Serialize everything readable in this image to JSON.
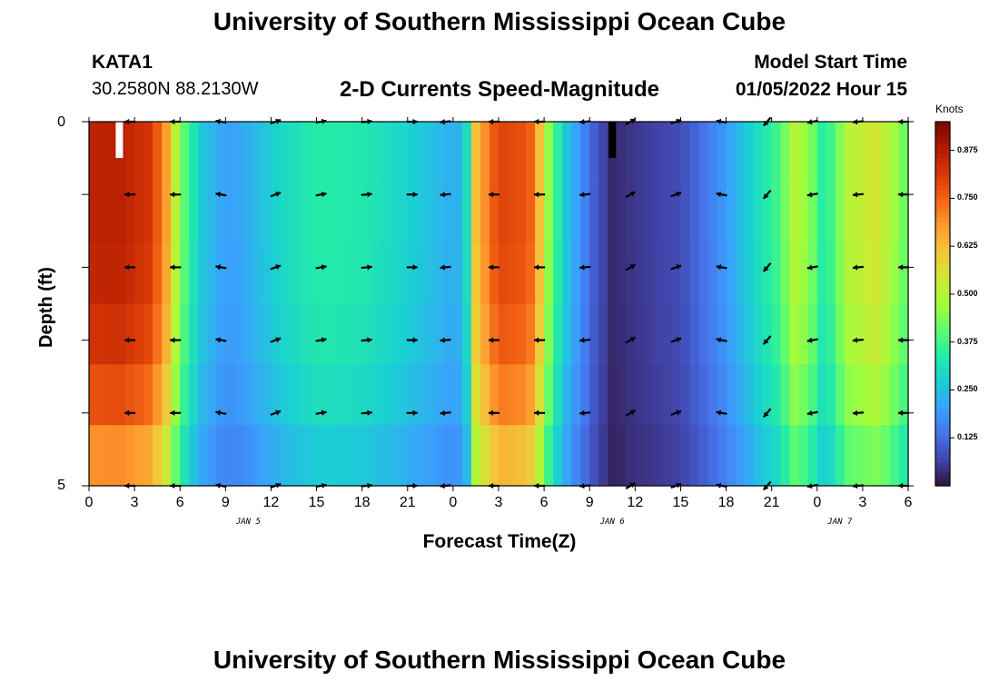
{
  "page_title": "University of Southern Mississippi Ocean Cube",
  "footer_title": "University of Southern Mississippi Ocean Cube",
  "station": {
    "id": "KATA1",
    "coords": "30.2580N  88.2130W"
  },
  "model_start": {
    "label": "Model Start Time",
    "value": "01/05/2022 Hour 15"
  },
  "colors": {
    "arrow": "#000000",
    "colormap": [
      "#30123b",
      "#4145ab",
      "#4675ed",
      "#39a2fc",
      "#1bcfd4",
      "#24eca6",
      "#61fc6c",
      "#a4fc3b",
      "#d1e834",
      "#f3c63a",
      "#fe9b2d",
      "#f36315",
      "#d93806",
      "#b11901",
      "#7a0403"
    ]
  },
  "chart_data": {
    "type": "heatmap",
    "title": "2-D Currents Speed-Magnitude",
    "xlabel": "Forecast Time(Z)",
    "ylabel": "Depth (ft)",
    "y_tick_labels": [
      "0",
      "5"
    ],
    "ylim": [
      0,
      5
    ],
    "x_tick_labels": [
      "0",
      "3",
      "6",
      "9",
      "12",
      "15",
      "18",
      "21",
      "0",
      "3",
      "6",
      "9",
      "12",
      "15",
      "18",
      "21",
      "0",
      "3",
      "6"
    ],
    "date_labels": [
      "JAN 5",
      "JAN 6",
      "JAN 7"
    ],
    "date_label_hours": [
      10.5,
      34.5,
      49.5
    ],
    "xlim_hours": [
      0,
      54
    ],
    "colorbar": {
      "title": "Knots",
      "min": 0,
      "max": 0.95,
      "tick_values": [
        0.875,
        0.75,
        0.625,
        0.5,
        0.375,
        0.25,
        0.125
      ],
      "tick_labels": [
        "0.875",
        "0.750",
        "0.625",
        "0.500",
        "0.375",
        "0.250",
        "0.125"
      ]
    },
    "depth_rows": 5,
    "depth_row_factor": [
      1.0,
      1.0,
      0.99,
      0.96,
      0.9
    ],
    "bottom_row_factor": 0.8,
    "speed_profile": {
      "hours": [
        0,
        2,
        4,
        5,
        5.5,
        6.5,
        7.5,
        9,
        10,
        13,
        15,
        18,
        21,
        24,
        24.8,
        25.5,
        27,
        29,
        29.8,
        30.5,
        31.5,
        32.5,
        33.5,
        34.5,
        36,
        39,
        41,
        42.5,
        44,
        45.5,
        46.5,
        47.5,
        48.5,
        50,
        52,
        54
      ],
      "speed_knots": [
        0.86,
        0.87,
        0.82,
        0.7,
        0.55,
        0.36,
        0.26,
        0.2,
        0.21,
        0.3,
        0.34,
        0.33,
        0.28,
        0.22,
        0.25,
        0.62,
        0.8,
        0.77,
        0.6,
        0.4,
        0.26,
        0.17,
        0.09,
        0.03,
        0.05,
        0.08,
        0.15,
        0.22,
        0.3,
        0.38,
        0.5,
        0.45,
        0.32,
        0.5,
        0.55,
        0.4
      ]
    },
    "quiver_hours": [
      2.7,
      5.7,
      8.7,
      12.3,
      15.3,
      18.3,
      21.3,
      23.5,
      26.7,
      29.7,
      32.7,
      35.7,
      38.7,
      41.7,
      44.7,
      47.7,
      50.7,
      53.7
    ],
    "quiver_depths": [
      0,
      1,
      2,
      3,
      4,
      5
    ],
    "quiver_direction_deg": [
      180,
      180,
      170,
      20,
      10,
      5,
      0,
      185,
      180,
      180,
      185,
      30,
      20,
      170,
      230,
      190,
      185,
      180
    ],
    "markers": [
      {
        "hour": 2.0,
        "depth": 0,
        "depth_end": 0.5,
        "color": "#ffffff"
      },
      {
        "hour": 34.5,
        "depth": 0,
        "depth_end": 0.5,
        "color": "#000000"
      }
    ]
  }
}
